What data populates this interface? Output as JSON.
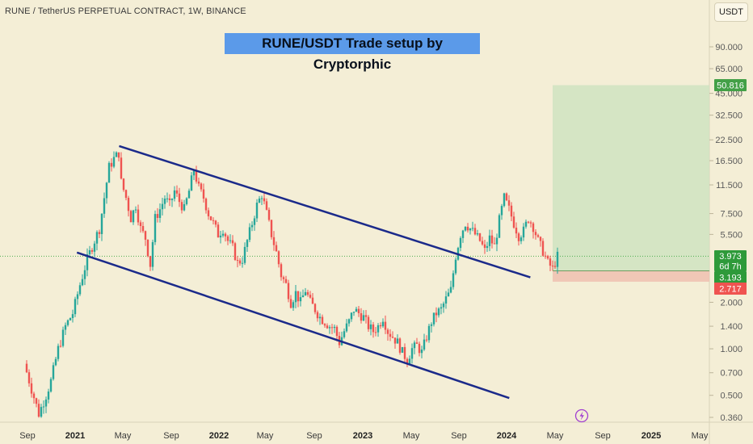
{
  "header": {
    "symbol_title": "RUNE / TetherUS PERPETUAL CONTRACT, 1W, BINANCE",
    "banner": "RUNE/USDT Trade setup by Cryptorphic",
    "currency_button": "USDT"
  },
  "colors": {
    "background": "#f4eed6",
    "bull_candle": "#26a69a",
    "bear_candle": "#ef5350",
    "channel_line": "#1b2a8a",
    "target_zone": "#cfe3c1",
    "stop_zone": "#efc0b0",
    "banner": "#5b9ae9"
  },
  "chart_data": {
    "type": "candlestick",
    "y_scale": "log",
    "y_ticks": [
      "90.000",
      "65.000",
      "45.000",
      "32.500",
      "22.500",
      "16.500",
      "11.500",
      "7.500",
      "5.500",
      "2.000",
      "1.400",
      "1.000",
      "0.700",
      "0.500",
      "0.360"
    ],
    "x_ticks": [
      {
        "label": "Sep",
        "bold": false
      },
      {
        "label": "2021",
        "bold": true
      },
      {
        "label": "May",
        "bold": false
      },
      {
        "label": "Sep",
        "bold": false
      },
      {
        "label": "2022",
        "bold": true
      },
      {
        "label": "May",
        "bold": false
      },
      {
        "label": "Sep",
        "bold": false
      },
      {
        "label": "2023",
        "bold": true
      },
      {
        "label": "May",
        "bold": false
      },
      {
        "label": "Sep",
        "bold": false
      },
      {
        "label": "2024",
        "bold": true
      },
      {
        "label": "May",
        "bold": false
      },
      {
        "label": "Sep",
        "bold": false
      },
      {
        "label": "2025",
        "bold": true
      },
      {
        "label": "May",
        "bold": false
      }
    ],
    "price_tags": {
      "target": "50.816",
      "current_price": "3.973",
      "countdown": "6d 7h",
      "entry": "3.193",
      "stop": "2.717"
    },
    "trade_setup": {
      "entry": 3.193,
      "stop": 2.717,
      "target": 50.816
    },
    "channel": {
      "upper_line": [
        {
          "date": "2021-05",
          "price": 20.5
        },
        {
          "date": "2024-08",
          "price": 2.9
        }
      ],
      "lower_line": [
        {
          "date": "2021-01",
          "price": 4.2
        },
        {
          "date": "2024-06",
          "price": 0.48
        }
      ]
    },
    "price_path": [
      [
        0,
        0.8
      ],
      [
        3,
        0.55
      ],
      [
        6,
        0.38
      ],
      [
        9,
        0.5
      ],
      [
        11,
        0.62
      ],
      [
        14,
        1.0
      ],
      [
        17,
        1.4
      ],
      [
        20,
        1.7
      ],
      [
        23,
        2.6
      ],
      [
        26,
        3.8
      ],
      [
        28,
        4.6
      ],
      [
        31,
        6.0
      ],
      [
        33,
        9.5
      ],
      [
        35,
        15
      ],
      [
        37,
        17
      ],
      [
        39,
        18.5
      ],
      [
        40,
        12
      ],
      [
        42,
        9.5
      ],
      [
        44,
        7.0
      ],
      [
        46,
        8.5
      ],
      [
        48,
        6.0
      ],
      [
        50,
        5.2
      ],
      [
        52,
        3.5
      ],
      [
        54,
        7.0
      ],
      [
        56,
        8.0
      ],
      [
        58,
        9.5
      ],
      [
        60,
        8.5
      ],
      [
        62,
        10.5
      ],
      [
        64,
        9.0
      ],
      [
        66,
        8.0
      ],
      [
        68,
        10.5
      ],
      [
        70,
        14.5
      ],
      [
        72,
        11.0
      ],
      [
        74,
        9.5
      ],
      [
        76,
        7.5
      ],
      [
        78,
        6.5
      ],
      [
        80,
        5.5
      ],
      [
        82,
        6.0
      ],
      [
        84,
        5.0
      ],
      [
        86,
        4.5
      ],
      [
        88,
        3.6
      ],
      [
        90,
        3.8
      ],
      [
        92,
        5.0
      ],
      [
        94,
        6.5
      ],
      [
        96,
        8.5
      ],
      [
        98,
        10.0
      ],
      [
        100,
        7.5
      ],
      [
        102,
        5.5
      ],
      [
        104,
        4.2
      ],
      [
        106,
        3.0
      ],
      [
        108,
        2.6
      ],
      [
        110,
        2.0
      ],
      [
        112,
        2.3
      ],
      [
        114,
        2.0
      ],
      [
        116,
        2.4
      ],
      [
        118,
        2.0
      ],
      [
        120,
        1.8
      ],
      [
        122,
        1.6
      ],
      [
        124,
        1.5
      ],
      [
        126,
        1.4
      ],
      [
        128,
        1.35
      ],
      [
        130,
        1.1
      ],
      [
        132,
        1.3
      ],
      [
        134,
        1.5
      ],
      [
        136,
        1.8
      ],
      [
        138,
        1.7
      ],
      [
        140,
        1.6
      ],
      [
        142,
        1.4
      ],
      [
        144,
        1.3
      ],
      [
        146,
        1.4
      ],
      [
        148,
        1.6
      ],
      [
        150,
        1.3
      ],
      [
        152,
        1.2
      ],
      [
        154,
        1.1
      ],
      [
        156,
        0.95
      ],
      [
        158,
        0.85
      ],
      [
        160,
        1.0
      ],
      [
        162,
        1.05
      ],
      [
        164,
        0.95
      ],
      [
        166,
        1.2
      ],
      [
        168,
        1.5
      ],
      [
        170,
        1.7
      ],
      [
        172,
        1.8
      ],
      [
        174,
        2.1
      ],
      [
        176,
        2.4
      ],
      [
        178,
        4.0
      ],
      [
        180,
        5.5
      ],
      [
        182,
        6.5
      ],
      [
        184,
        6.0
      ],
      [
        186,
        5.5
      ],
      [
        188,
        5.0
      ],
      [
        190,
        4.3
      ],
      [
        192,
        5.2
      ],
      [
        194,
        4.6
      ],
      [
        196,
        6.8
      ],
      [
        198,
        9.5
      ],
      [
        200,
        8.0
      ],
      [
        202,
        6.5
      ],
      [
        204,
        5.4
      ],
      [
        206,
        5.8
      ],
      [
        208,
        7.0
      ],
      [
        210,
        6.2
      ],
      [
        212,
        5.0
      ],
      [
        214,
        4.3
      ],
      [
        216,
        3.6
      ],
      [
        218,
        3.3
      ],
      [
        220,
        3.97
      ]
    ]
  }
}
